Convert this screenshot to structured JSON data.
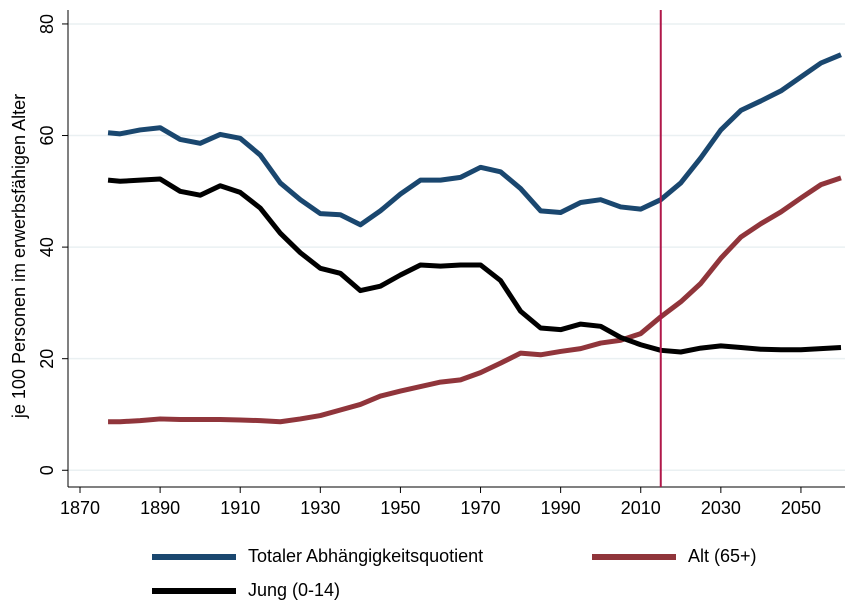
{
  "chart_data": {
    "type": "line",
    "ylabel": "je 100 Personen im erwerbsfähigen Alter",
    "x": [
      1877,
      1880,
      1885,
      1890,
      1895,
      1900,
      1905,
      1910,
      1915,
      1920,
      1925,
      1930,
      1935,
      1940,
      1945,
      1950,
      1955,
      1960,
      1965,
      1970,
      1975,
      1980,
      1985,
      1990,
      1995,
      2000,
      2005,
      2010,
      2015,
      2020,
      2025,
      2030,
      2035,
      2040,
      2045,
      2050,
      2055,
      2060
    ],
    "series": [
      {
        "name": "Totaler Abhängigkeitsquotient",
        "color": "#1a476f",
        "values": [
          60.5,
          60.3,
          61,
          61.4,
          59.3,
          58.6,
          60.2,
          59.5,
          56.5,
          51.5,
          48.5,
          46,
          45.8,
          44,
          46.5,
          49.5,
          52,
          52,
          52.5,
          54.3,
          53.5,
          50.5,
          46.5,
          46.2,
          48,
          48.5,
          47.2,
          46.8,
          48.5,
          51.5,
          56,
          61,
          64.5,
          66.2,
          68,
          70.5,
          73,
          74.5
        ]
      },
      {
        "name": "Alt (65+)",
        "color": "#90353b",
        "values": [
          8.7,
          8.7,
          8.9,
          9.2,
          9.1,
          9.1,
          9.1,
          9.0,
          8.9,
          8.7,
          9.2,
          9.8,
          10.8,
          11.8,
          13.3,
          14.2,
          15,
          15.8,
          16.2,
          17.5,
          19.2,
          21,
          20.7,
          21.3,
          21.8,
          22.8,
          23.3,
          24.5,
          27.5,
          30.2,
          33.5,
          38,
          41.8,
          44.2,
          46.3,
          48.8,
          51.2,
          52.4
        ]
      },
      {
        "name": "Jung (0-14)",
        "color": "#000000",
        "values": [
          52,
          51.8,
          52,
          52.2,
          50,
          49.3,
          51,
          49.8,
          47,
          42.5,
          39,
          36.2,
          35.3,
          32.2,
          33,
          35,
          36.8,
          36.6,
          36.8,
          36.8,
          34,
          28.5,
          25.5,
          25.2,
          26.2,
          25.8,
          23.8,
          22.5,
          21.5,
          21.2,
          21.9,
          22.3,
          22,
          21.7,
          21.6,
          21.6,
          21.8,
          22
        ]
      }
    ],
    "xlim": [
      1867,
      2061
    ],
    "xticks": [
      1870,
      1890,
      1910,
      1930,
      1950,
      1970,
      1990,
      2010,
      2030,
      2050
    ],
    "ylim": [
      -3,
      82.5
    ],
    "yticks": [
      0,
      20,
      40,
      60,
      80
    ],
    "grid": true,
    "vline": 2015,
    "vline_color": "#b0184a"
  }
}
